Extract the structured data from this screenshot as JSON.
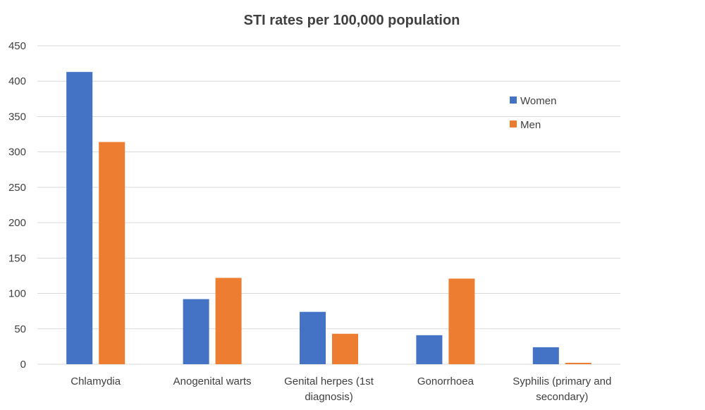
{
  "chart_data": {
    "type": "bar",
    "title": "STI rates per 100,000 population",
    "xlabel": "",
    "ylabel": "",
    "ylim": [
      0,
      450
    ],
    "yticks": [
      0,
      50,
      100,
      150,
      200,
      250,
      300,
      350,
      400,
      450
    ],
    "grid": true,
    "legend_position": "top-right",
    "categories": [
      [
        "Chlamydia"
      ],
      [
        "Anogenital warts"
      ],
      [
        "Genital herpes (1st",
        "diagnosis)"
      ],
      [
        "Gonorrhoea"
      ],
      [
        "Syphilis (primary and",
        "secondary)"
      ]
    ],
    "series": [
      {
        "name": "Women",
        "color": "#4472c4",
        "values": [
          413,
          92,
          74,
          41,
          24
        ]
      },
      {
        "name": "Men",
        "color": "#ed7d31",
        "values": [
          314,
          122,
          43,
          121,
          2
        ]
      }
    ]
  }
}
